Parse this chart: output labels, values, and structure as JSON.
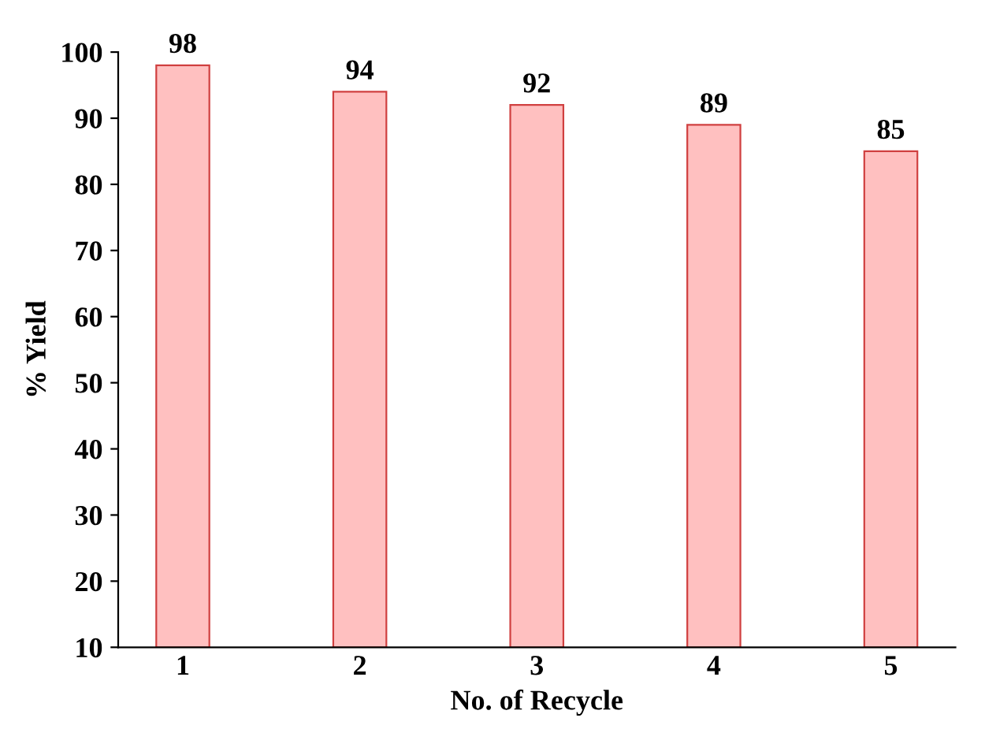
{
  "chart_data": {
    "type": "bar",
    "xlabel": "No. of Recycle",
    "ylabel": "% Yield",
    "categories": [
      "1",
      "2",
      "3",
      "4",
      "5"
    ],
    "values": [
      98,
      94,
      92,
      89,
      85
    ],
    "color": "#ffc0c0",
    "ylim": [
      10,
      100
    ],
    "yticks": [
      10,
      20,
      30,
      40,
      50,
      60,
      70,
      80,
      90,
      100
    ],
    "data_labels": true,
    "grid": false,
    "legend": false
  }
}
